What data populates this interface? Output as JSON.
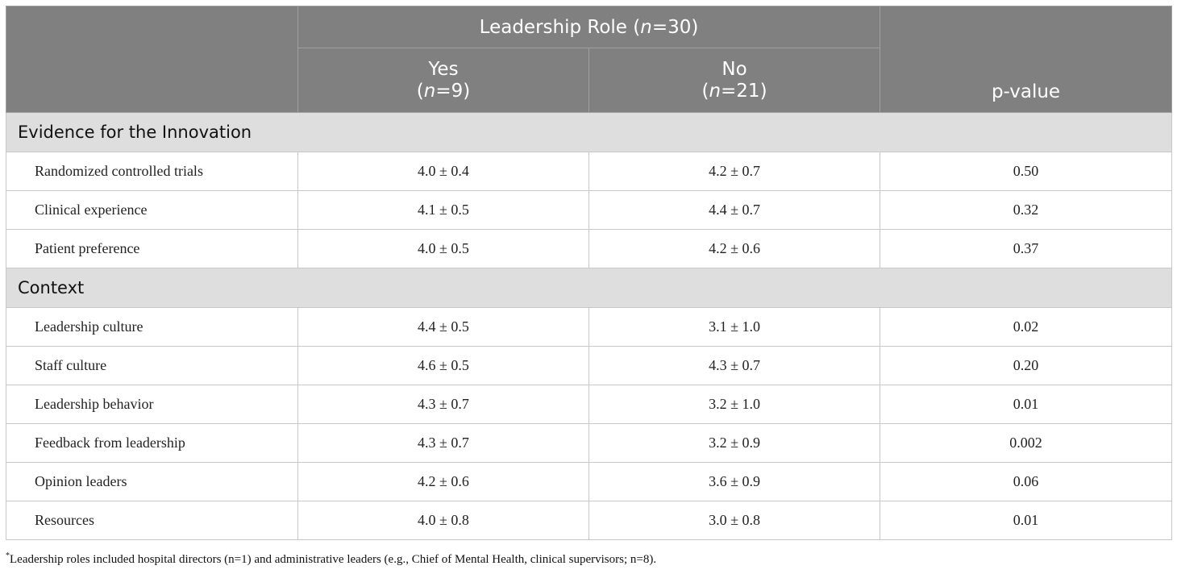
{
  "header": {
    "group_label_prefix": "Leadership Role (",
    "group_label_n": "n",
    "group_label_suffix": "=30)",
    "col_yes_label": "Yes",
    "col_yes_n_prefix": "(",
    "col_yes_n_italic": "n",
    "col_yes_n_suffix": "=9)",
    "col_no_label": "No",
    "col_no_n_prefix": "(",
    "col_no_n_italic": "n",
    "col_no_n_suffix": "=21)",
    "pvalue_label": "p-value"
  },
  "sections": [
    {
      "title": "Evidence for the Innovation",
      "rows": [
        {
          "label": "Randomized controlled trials",
          "yes": "4.0 ± 0.4",
          "no": "4.2 ± 0.7",
          "p": "0.50"
        },
        {
          "label": "Clinical experience",
          "yes": "4.1 ± 0.5",
          "no": "4.4 ± 0.7",
          "p": "0.32"
        },
        {
          "label": "Patient preference",
          "yes": "4.0 ± 0.5",
          "no": "4.2 ± 0.6",
          "p": "0.37"
        }
      ]
    },
    {
      "title": "Context",
      "rows": [
        {
          "label": "Leadership culture",
          "yes": "4.4 ± 0.5",
          "no": "3.1 ± 1.0",
          "p": "0.02"
        },
        {
          "label": "Staff culture",
          "yes": "4.6 ± 0.5",
          "no": "4.3 ± 0.7",
          "p": "0.20"
        },
        {
          "label": "Leadership behavior",
          "yes": "4.3 ± 0.7",
          "no": "3.2 ± 1.0",
          "p": "0.01"
        },
        {
          "label": "Feedback from leadership",
          "yes": "4.3 ± 0.7",
          "no": "3.2 ± 0.9",
          "p": "0.002"
        },
        {
          "label": "Opinion leaders",
          "yes": "4.2 ± 0.6",
          "no": "3.6 ± 0.9",
          "p": "0.06"
        },
        {
          "label": "Resources",
          "yes": "4.0 ± 0.8",
          "no": "3.0 ± 0.8",
          "p": "0.01"
        }
      ]
    }
  ],
  "footnote": {
    "marker": "*",
    "text": "Leadership roles included hospital directors (n=1) and administrative leaders (e.g., Chief of Mental Health, clinical supervisors; n=8)."
  }
}
